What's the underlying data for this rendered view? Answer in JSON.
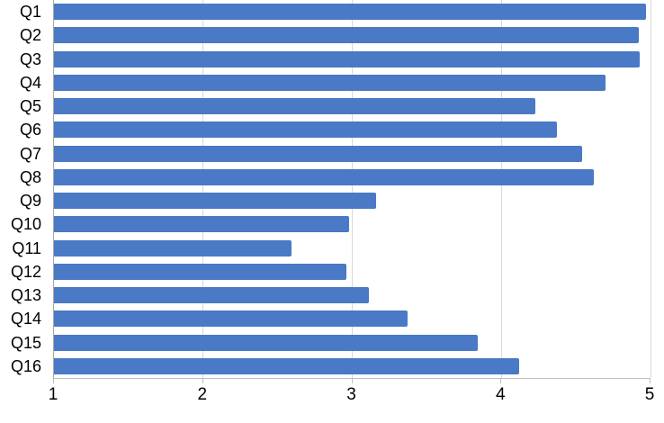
{
  "chart_data": {
    "type": "bar",
    "orientation": "horizontal",
    "title": "",
    "xlabel": "",
    "ylabel": "",
    "categories": [
      "Q1",
      "Q2",
      "Q3",
      "Q4",
      "Q5",
      "Q6",
      "Q7",
      "Q8",
      "Q9",
      "Q10",
      "Q11",
      "Q12",
      "Q13",
      "Q14",
      "Q15",
      "Q16"
    ],
    "values": [
      4.97,
      4.92,
      4.93,
      4.7,
      4.23,
      4.37,
      4.54,
      4.62,
      3.16,
      2.98,
      2.59,
      2.96,
      3.11,
      3.37,
      3.84,
      4.12
    ],
    "xlim": [
      1,
      5
    ],
    "x_ticks": [
      "1",
      "2",
      "3",
      "4",
      "5"
    ],
    "grid": true,
    "legend": false,
    "bar_color": "#4A79C5",
    "gridline_color": "#D9D9D9",
    "axis_line_color": "#A6A6A6",
    "tick_label_color": "#000000"
  }
}
